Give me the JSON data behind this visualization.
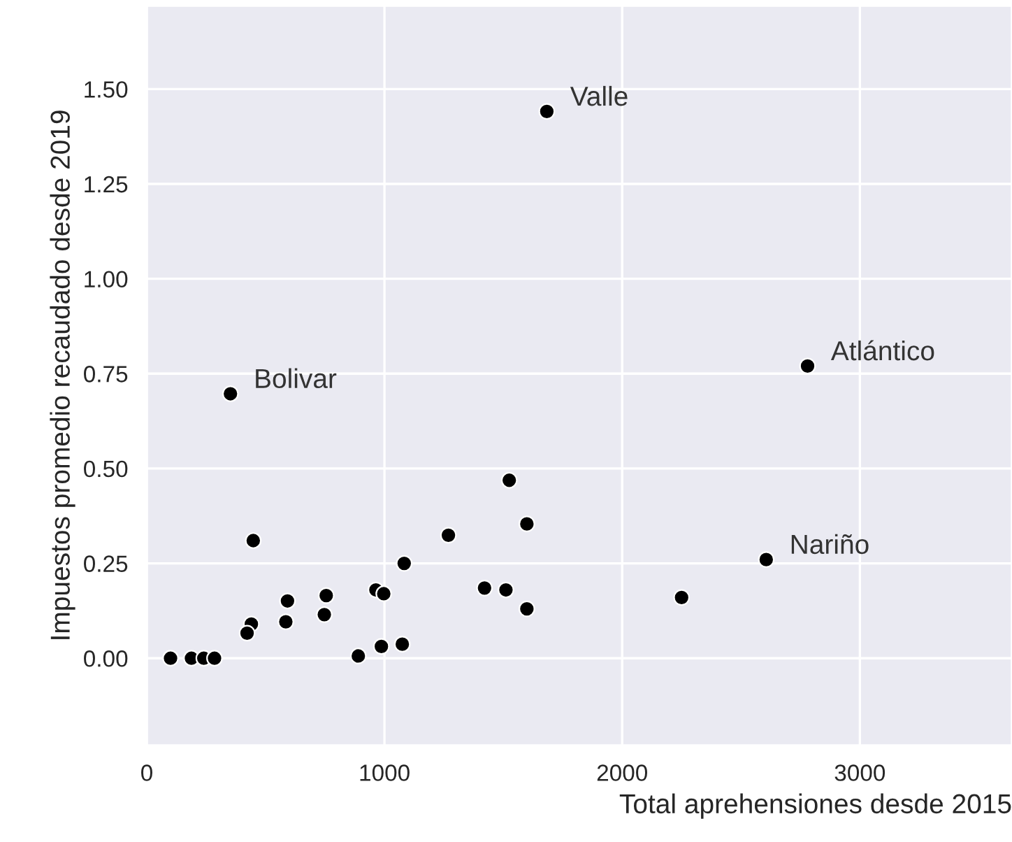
{
  "chart_data": {
    "type": "scatter",
    "xlabel": "Total aprehensiones desde 2015",
    "ylabel": "Impuestos promedio recaudado desde 2019",
    "x": [
      100,
      188,
      240,
      285,
      448,
      440,
      422,
      592,
      585,
      755,
      747,
      890,
      964,
      997,
      987,
      1075,
      1083,
      1269,
      1421,
      1511,
      1525,
      1599,
      1599,
      2250,
      2606,
      1683,
      2780,
      352
    ],
    "series": [
      {
        "color": "#000000",
        "values": [
          0,
          0,
          0,
          0,
          0.31,
          0.09,
          0.066,
          0.151,
          0.096,
          0.165,
          0.115,
          0.006,
          0.18,
          0.17,
          0.031,
          0.037,
          0.25,
          0.324,
          0.185,
          0.18,
          0.469,
          0.354,
          0.13,
          0.16,
          0.26,
          1.441,
          0.77,
          0.697
        ]
      }
    ],
    "annotations": [
      {
        "text": "Valle",
        "x": 1683,
        "y": 1.441
      },
      {
        "text": "Atlántico",
        "x": 2780,
        "y": 0.77
      },
      {
        "text": "Bolivar",
        "x": 352,
        "y": 0.697
      },
      {
        "text": "Nariño",
        "x": 2606,
        "y": 0.26
      }
    ],
    "xlim": [
      0,
      3640
    ],
    "ylim": [
      -0.23,
      1.72
    ],
    "xticks": [
      0,
      1000,
      2000,
      3000
    ],
    "yticks": [
      {
        "value": 0,
        "label": "0.00"
      },
      {
        "value": 0.25,
        "label": "0.25"
      },
      {
        "value": 0.5,
        "label": "0.50"
      },
      {
        "value": 0.75,
        "label": "0.75"
      },
      {
        "value": 1.0,
        "label": "1.00"
      },
      {
        "value": 1.25,
        "label": "1.25"
      },
      {
        "value": 1.5,
        "label": "1.50"
      }
    ],
    "grid": true,
    "marker": "circle"
  }
}
